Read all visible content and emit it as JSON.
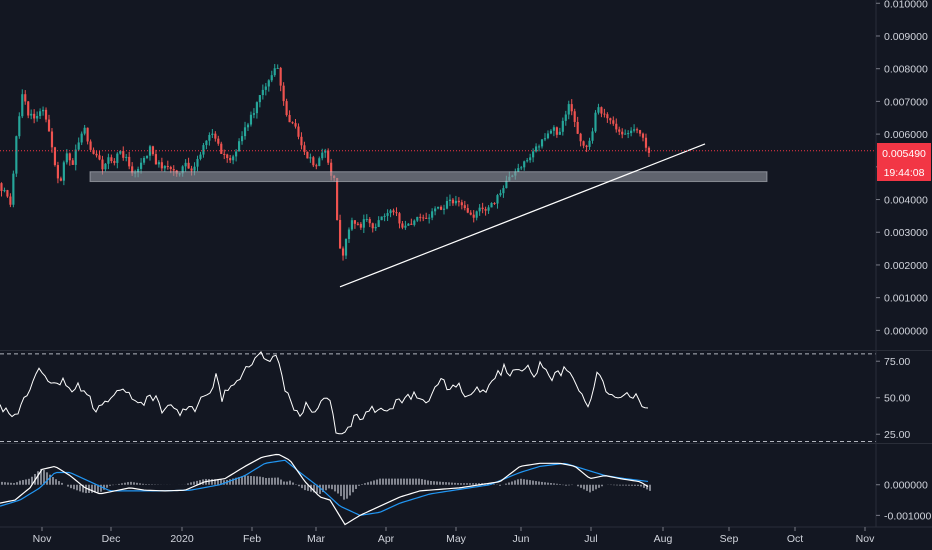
{
  "chart_data": [
    {
      "type": "candlestick",
      "panel": "price",
      "y_range": [
        -0.0006,
        0.0101
      ],
      "y_ticks": [
        "0.010000",
        "0.009000",
        "0.008000",
        "0.007000",
        "0.006000",
        "0.005000",
        "0.004000",
        "0.003000",
        "0.002000",
        "0.001000",
        "0.000000"
      ],
      "grid": false,
      "colors": {
        "up": "#26a69a",
        "down": "#ef5350",
        "wick_up": "#26a69a",
        "wick_down": "#ef5350"
      },
      "keypoints": [
        [
          0,
          0.0045
        ],
        [
          8,
          0.0041
        ],
        [
          12,
          0.0038
        ],
        [
          18,
          0.006
        ],
        [
          24,
          0.0072
        ],
        [
          30,
          0.0066
        ],
        [
          38,
          0.0065
        ],
        [
          45,
          0.0068
        ],
        [
          52,
          0.0058
        ],
        [
          58,
          0.0048
        ],
        [
          62,
          0.0046
        ],
        [
          68,
          0.0055
        ],
        [
          74,
          0.0051
        ],
        [
          80,
          0.0058
        ],
        [
          86,
          0.0062
        ],
        [
          92,
          0.0055
        ],
        [
          98,
          0.0053
        ],
        [
          104,
          0.005
        ],
        [
          110,
          0.0053
        ],
        [
          116,
          0.0052
        ],
        [
          122,
          0.0055
        ],
        [
          128,
          0.0052
        ],
        [
          134,
          0.0048
        ],
        [
          140,
          0.005
        ],
        [
          146,
          0.0052
        ],
        [
          152,
          0.0056
        ],
        [
          158,
          0.0051
        ],
        [
          164,
          0.005
        ],
        [
          170,
          0.0049
        ],
        [
          176,
          0.0048
        ],
        [
          182,
          0.0049
        ],
        [
          188,
          0.0051
        ],
        [
          194,
          0.0049
        ],
        [
          200,
          0.0053
        ],
        [
          206,
          0.0057
        ],
        [
          212,
          0.006
        ],
        [
          218,
          0.0058
        ],
        [
          224,
          0.0054
        ],
        [
          230,
          0.0052
        ],
        [
          236,
          0.0054
        ],
        [
          242,
          0.0058
        ],
        [
          248,
          0.0063
        ],
        [
          254,
          0.0066
        ],
        [
          260,
          0.0071
        ],
        [
          266,
          0.0075
        ],
        [
          272,
          0.0077
        ],
        [
          278,
          0.0082
        ],
        [
          282,
          0.0076
        ],
        [
          286,
          0.0068
        ],
        [
          290,
          0.0064
        ],
        [
          295,
          0.0064
        ],
        [
          300,
          0.006
        ],
        [
          306,
          0.0054
        ],
        [
          312,
          0.0052
        ],
        [
          318,
          0.005
        ],
        [
          324,
          0.0054
        ],
        [
          328,
          0.0055
        ],
        [
          332,
          0.0048
        ],
        [
          336,
          0.0047
        ],
        [
          340,
          0.0026
        ],
        [
          344,
          0.0022
        ],
        [
          348,
          0.0028
        ],
        [
          352,
          0.0034
        ],
        [
          356,
          0.0033
        ],
        [
          362,
          0.0032
        ],
        [
          368,
          0.0034
        ],
        [
          374,
          0.0031
        ],
        [
          380,
          0.0033
        ],
        [
          386,
          0.0035
        ],
        [
          392,
          0.0036
        ],
        [
          398,
          0.0035
        ],
        [
          404,
          0.0032
        ],
        [
          410,
          0.0032
        ],
        [
          416,
          0.0033
        ],
        [
          422,
          0.0035
        ],
        [
          428,
          0.0034
        ],
        [
          434,
          0.0036
        ],
        [
          440,
          0.0037
        ],
        [
          446,
          0.0038
        ],
        [
          452,
          0.004
        ],
        [
          458,
          0.0039
        ],
        [
          464,
          0.0038
        ],
        [
          470,
          0.0036
        ],
        [
          476,
          0.0035
        ],
        [
          482,
          0.0037
        ],
        [
          488,
          0.0037
        ],
        [
          494,
          0.0039
        ],
        [
          500,
          0.0041
        ],
        [
          506,
          0.0044
        ],
        [
          512,
          0.0047
        ],
        [
          518,
          0.0049
        ],
        [
          524,
          0.0051
        ],
        [
          530,
          0.0053
        ],
        [
          536,
          0.0055
        ],
        [
          542,
          0.0057
        ],
        [
          548,
          0.0059
        ],
        [
          554,
          0.0062
        ],
        [
          560,
          0.0059
        ],
        [
          566,
          0.0065
        ],
        [
          570,
          0.007
        ],
        [
          574,
          0.0066
        ],
        [
          578,
          0.0062
        ],
        [
          582,
          0.0058
        ],
        [
          588,
          0.0056
        ],
        [
          594,
          0.006
        ],
        [
          598,
          0.0068
        ],
        [
          604,
          0.0066
        ],
        [
          610,
          0.0064
        ],
        [
          616,
          0.0062
        ],
        [
          622,
          0.006
        ],
        [
          628,
          0.006
        ],
        [
          634,
          0.0062
        ],
        [
          640,
          0.0061
        ],
        [
          644,
          0.006
        ],
        [
          648,
          0.0055
        ]
      ],
      "last_price": "0.005490",
      "countdown": "19:44:08",
      "last_price_color": "#f23645",
      "support_zone": {
        "y_low": 0.00455,
        "y_high": 0.00485,
        "color": "#9598a1"
      },
      "trendline": {
        "from": [
          340,
          0.00133
        ],
        "to": [
          705,
          0.0057
        ],
        "color": "#ffffff"
      }
    },
    {
      "type": "line",
      "panel": "rsi",
      "y_range": [
        19,
        82
      ],
      "y_ticks": [
        "75.00",
        "50.00",
        "25.00"
      ],
      "levels": [
        80,
        20
      ],
      "color": "#ffffff",
      "keypoints": [
        [
          0,
          44
        ],
        [
          10,
          38
        ],
        [
          20,
          42
        ],
        [
          28,
          54
        ],
        [
          34,
          66
        ],
        [
          40,
          72
        ],
        [
          48,
          64
        ],
        [
          56,
          60
        ],
        [
          64,
          62
        ],
        [
          72,
          56
        ],
        [
          80,
          58
        ],
        [
          88,
          52
        ],
        [
          96,
          42
        ],
        [
          104,
          50
        ],
        [
          112,
          48
        ],
        [
          120,
          58
        ],
        [
          128,
          52
        ],
        [
          136,
          46
        ],
        [
          144,
          44
        ],
        [
          150,
          52
        ],
        [
          156,
          50
        ],
        [
          162,
          42
        ],
        [
          170,
          46
        ],
        [
          178,
          38
        ],
        [
          186,
          44
        ],
        [
          194,
          42
        ],
        [
          202,
          50
        ],
        [
          210,
          52
        ],
        [
          216,
          64
        ],
        [
          222,
          50
        ],
        [
          228,
          56
        ],
        [
          236,
          60
        ],
        [
          244,
          68
        ],
        [
          252,
          74
        ],
        [
          258,
          80
        ],
        [
          264,
          78
        ],
        [
          270,
          76
        ],
        [
          276,
          80
        ],
        [
          280,
          72
        ],
        [
          286,
          54
        ],
        [
          292,
          44
        ],
        [
          300,
          38
        ],
        [
          306,
          44
        ],
        [
          312,
          38
        ],
        [
          318,
          42
        ],
        [
          324,
          50
        ],
        [
          328,
          52
        ],
        [
          332,
          40
        ],
        [
          338,
          22
        ],
        [
          344,
          26
        ],
        [
          350,
          32
        ],
        [
          356,
          38
        ],
        [
          362,
          36
        ],
        [
          370,
          44
        ],
        [
          378,
          42
        ],
        [
          386,
          40
        ],
        [
          394,
          46
        ],
        [
          402,
          48
        ],
        [
          410,
          52
        ],
        [
          418,
          50
        ],
        [
          426,
          46
        ],
        [
          434,
          54
        ],
        [
          442,
          62
        ],
        [
          450,
          54
        ],
        [
          458,
          60
        ],
        [
          466,
          46
        ],
        [
          474,
          56
        ],
        [
          482,
          52
        ],
        [
          490,
          60
        ],
        [
          498,
          66
        ],
        [
          504,
          70
        ],
        [
          510,
          66
        ],
        [
          516,
          70
        ],
        [
          522,
          68
        ],
        [
          528,
          70
        ],
        [
          534,
          66
        ],
        [
          540,
          72
        ],
        [
          546,
          68
        ],
        [
          552,
          64
        ],
        [
          560,
          66
        ],
        [
          566,
          70
        ],
        [
          572,
          66
        ],
        [
          578,
          58
        ],
        [
          584,
          48
        ],
        [
          590,
          46
        ],
        [
          596,
          66
        ],
        [
          602,
          62
        ],
        [
          608,
          54
        ],
        [
          614,
          52
        ],
        [
          620,
          48
        ],
        [
          626,
          52
        ],
        [
          632,
          48
        ],
        [
          638,
          52
        ],
        [
          642,
          44
        ],
        [
          646,
          44
        ],
        [
          650,
          42
        ]
      ]
    },
    {
      "type": "macd",
      "panel": "macd",
      "y_range": [
        -0.00138,
        0.00133
      ],
      "y_ticks": [
        "0.000000",
        "-0.001000"
      ],
      "colors": {
        "macd": "#ffffff",
        "signal": "#2196f3",
        "hist": "#b2b5be"
      },
      "macd_keypoints": [
        [
          0,
          -0.0006
        ],
        [
          15,
          -0.0005
        ],
        [
          30,
          -0.0001
        ],
        [
          42,
          0.0005
        ],
        [
          55,
          0.0006
        ],
        [
          70,
          0.0003
        ],
        [
          85,
          -0.0001
        ],
        [
          100,
          -0.0003
        ],
        [
          115,
          -0.0002
        ],
        [
          130,
          -0.0001
        ],
        [
          145,
          -0.00018
        ],
        [
          165,
          -0.0002
        ],
        [
          185,
          -0.00018
        ],
        [
          205,
          0.0001
        ],
        [
          225,
          0.0002
        ],
        [
          245,
          0.0006
        ],
        [
          262,
          0.0009
        ],
        [
          278,
          0.001
        ],
        [
          290,
          0.0008
        ],
        [
          305,
          0.0001
        ],
        [
          320,
          -0.0004
        ],
        [
          330,
          -0.0005
        ],
        [
          345,
          -0.0013
        ],
        [
          360,
          -0.001
        ],
        [
          380,
          -0.0007
        ],
        [
          400,
          -0.0004
        ],
        [
          420,
          -0.0002
        ],
        [
          440,
          -0.00015
        ],
        [
          460,
          -0.0001
        ],
        [
          480,
          0.0
        ],
        [
          500,
          0.0001
        ],
        [
          520,
          0.0006
        ],
        [
          540,
          0.0007
        ],
        [
          560,
          0.0007
        ],
        [
          575,
          0.0006
        ],
        [
          590,
          0.0002
        ],
        [
          605,
          0.0003
        ],
        [
          620,
          0.0002
        ],
        [
          640,
          0.0001
        ],
        [
          650,
          -0.0001
        ]
      ],
      "signal_keypoints": [
        [
          0,
          -0.0007
        ],
        [
          20,
          -0.0005
        ],
        [
          40,
          -0.0001
        ],
        [
          55,
          0.0004
        ],
        [
          70,
          0.0004
        ],
        [
          90,
          0.0001
        ],
        [
          110,
          -0.0002
        ],
        [
          130,
          -0.0002
        ],
        [
          160,
          -0.0002
        ],
        [
          190,
          -0.00018
        ],
        [
          220,
          0.0
        ],
        [
          245,
          0.0003
        ],
        [
          265,
          0.0007
        ],
        [
          285,
          0.0008
        ],
        [
          300,
          0.0004
        ],
        [
          320,
          -0.0001
        ],
        [
          340,
          -0.0007
        ],
        [
          360,
          -0.001
        ],
        [
          380,
          -0.0009
        ],
        [
          400,
          -0.0006
        ],
        [
          430,
          -0.0003
        ],
        [
          460,
          -0.00015
        ],
        [
          490,
          0.0
        ],
        [
          520,
          0.0004
        ],
        [
          540,
          0.0006
        ],
        [
          565,
          0.0007
        ],
        [
          585,
          0.0005
        ],
        [
          605,
          0.0003
        ],
        [
          625,
          0.0002
        ],
        [
          650,
          0.0001
        ]
      ]
    }
  ],
  "x_axis": {
    "labels": [
      "Nov",
      "Dec",
      "2020",
      "Feb",
      "Mar",
      "Apr",
      "May",
      "Jun",
      "Jul",
      "Aug",
      "Sep",
      "Oct",
      "Nov"
    ]
  },
  "theme": {
    "background": "#131722",
    "axis_text": "#d1d4dc",
    "separator": "#2a2e39"
  }
}
